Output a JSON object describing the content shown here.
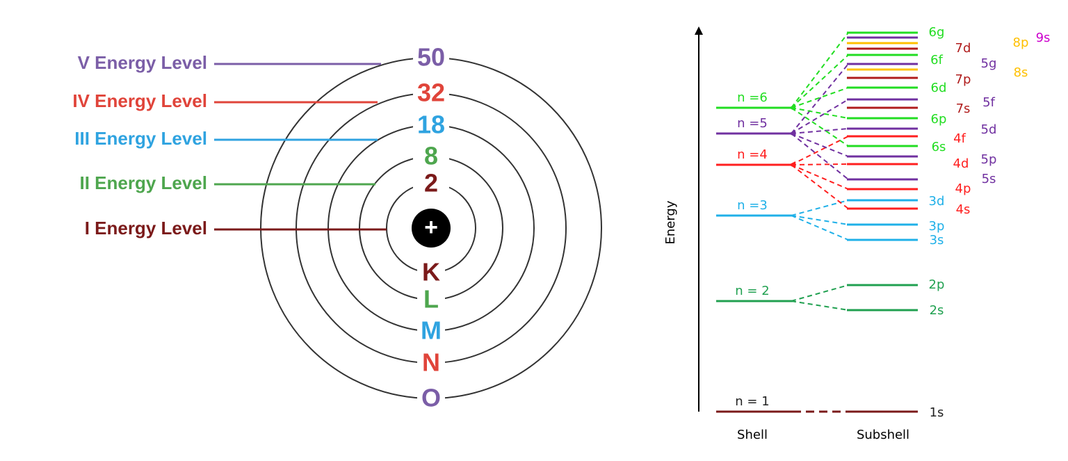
{
  "left": {
    "levels": [
      {
        "label": "V Energy Level",
        "capacity": 50,
        "shell": "O"
      },
      {
        "label": "IV Energy Level",
        "capacity": 32,
        "shell": "N"
      },
      {
        "label": "III Energy Level",
        "capacity": 18,
        "shell": "M"
      },
      {
        "label": "II Energy Level",
        "capacity": 8,
        "shell": "L"
      },
      {
        "label": "I Energy Level",
        "capacity": 2,
        "shell": "K"
      }
    ],
    "nucleus": "+"
  },
  "right": {
    "axis_label": "Energy",
    "shells": [
      "n = 1",
      "n = 2",
      "n =3",
      "n =4",
      "n =5",
      "n =6"
    ],
    "subshells": [
      "6g",
      "7d",
      "8p",
      "9s",
      "6f",
      "5g",
      "8s",
      "7p",
      "6d",
      "5f",
      "7s",
      "6p",
      "5d",
      "4f",
      "6s",
      "4d",
      "5p",
      "5s",
      "4p",
      "3d",
      "4s",
      "3p",
      "3s",
      "2p",
      "2s",
      "1s"
    ],
    "footer": [
      "Shell",
      "Subshell"
    ]
  }
}
